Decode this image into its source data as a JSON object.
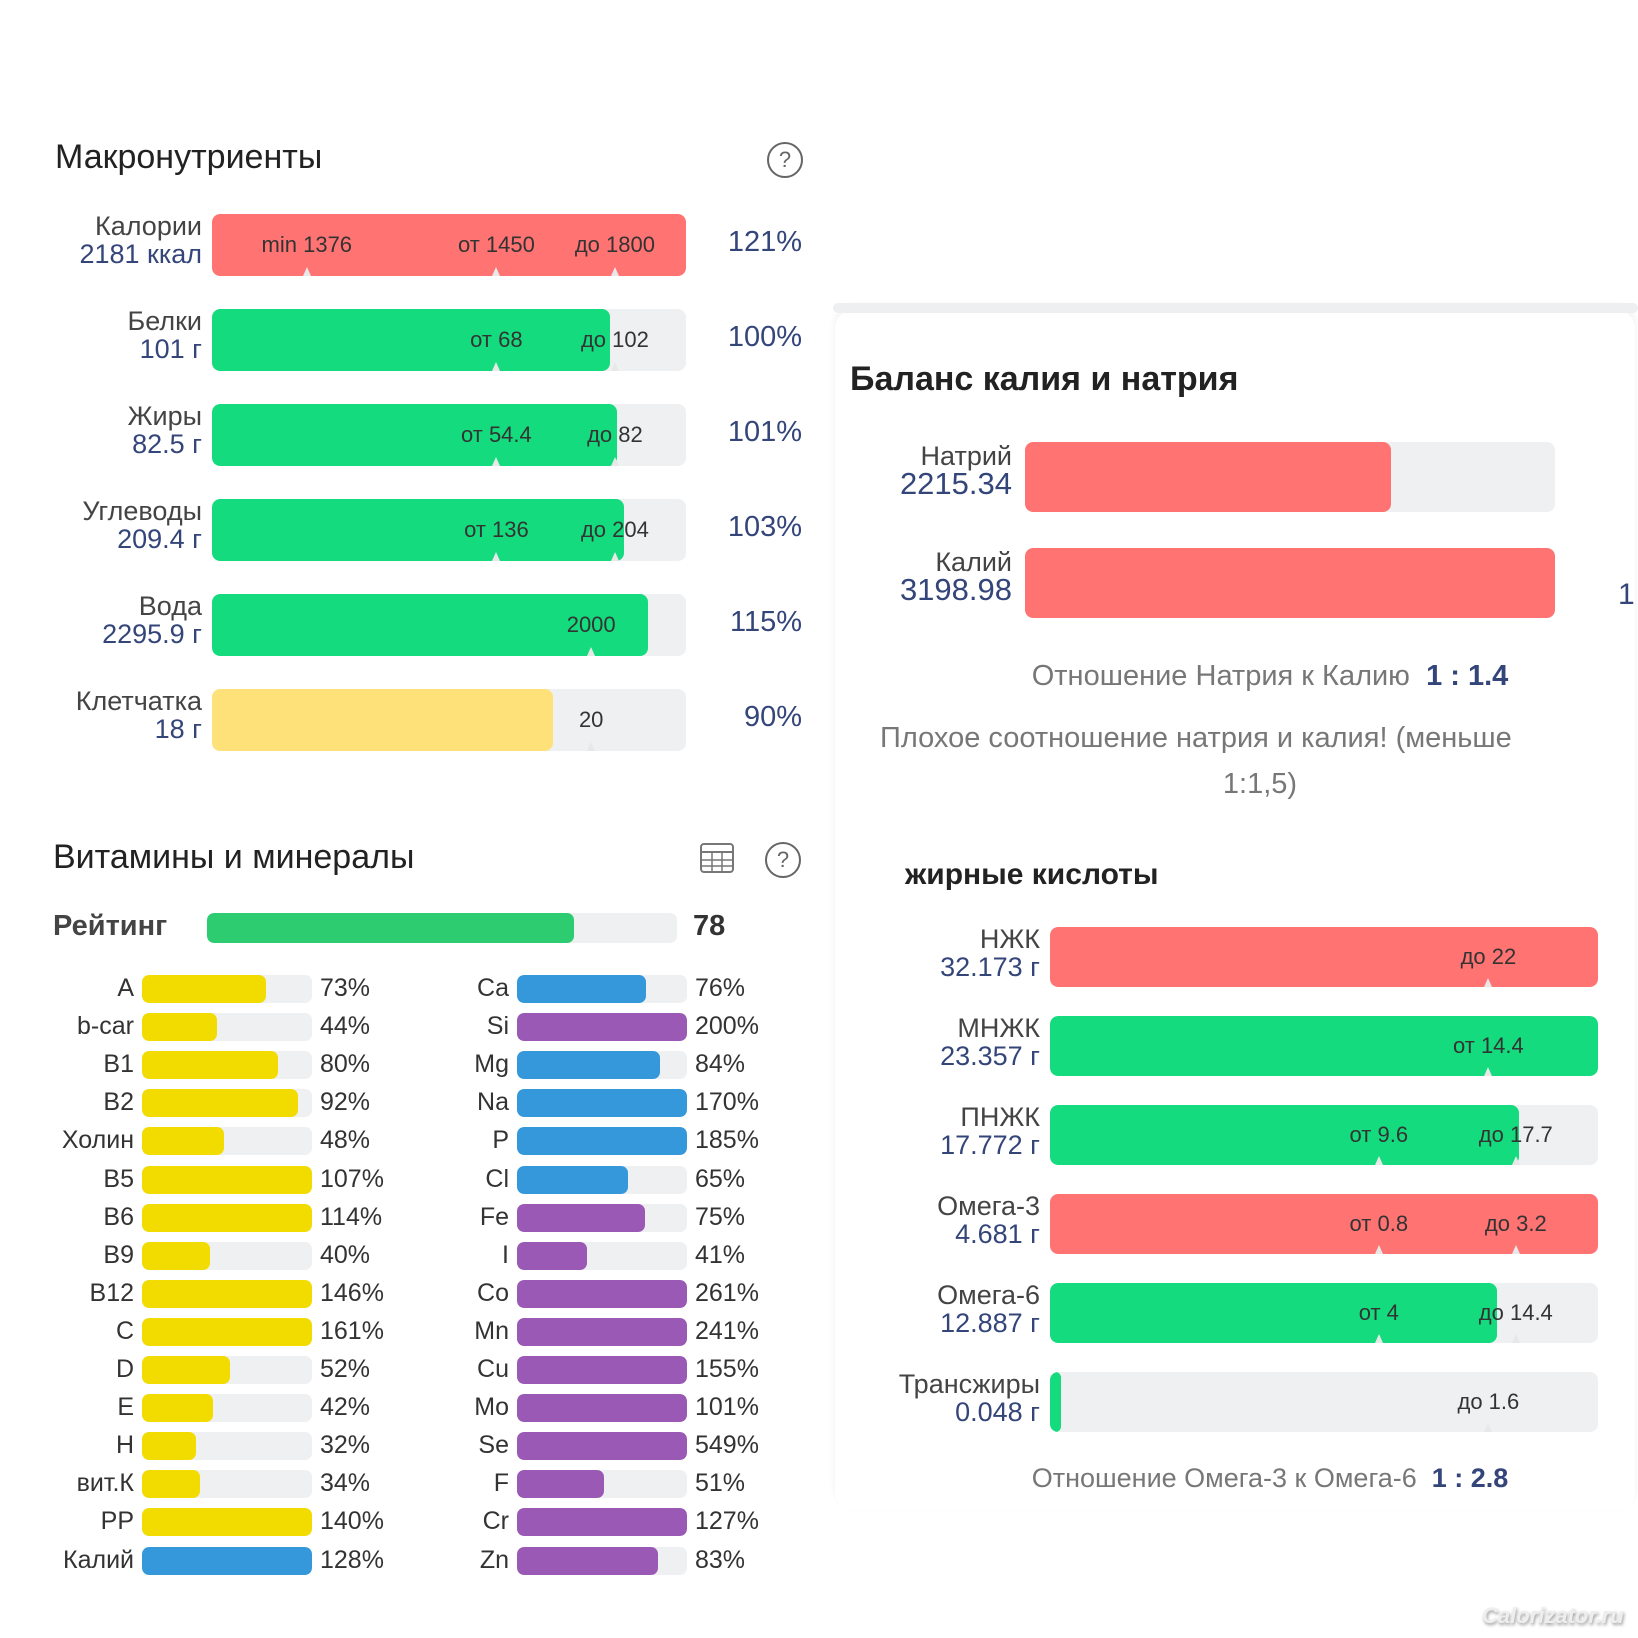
{
  "colors": {
    "red": "#ff7373",
    "green": "#14db7d",
    "yellow": "#ffe17a",
    "vit_yellow": "#f2dc00",
    "mineral_blue": "#3498db",
    "mineral_purple": "#9b59b6",
    "rating_green": "#2ecc71",
    "value_blue": "#34457a"
  },
  "macro": {
    "title": "Макронутриенты",
    "help_icon": "question-circle-icon",
    "rows": [
      {
        "name": "Калории",
        "value": "2181 ккал",
        "pct": "121%",
        "fill": 1.0,
        "color": "red",
        "marks": [
          {
            "text": "min 1376",
            "pos": 0.2
          },
          {
            "text": "от 1450",
            "pos": 0.6
          },
          {
            "text": "до 1800",
            "pos": 0.85
          }
        ]
      },
      {
        "name": "Белки",
        "value": "101 г",
        "pct": "100%",
        "fill": 0.84,
        "color": "green",
        "marks": [
          {
            "text": "от 68",
            "pos": 0.6
          },
          {
            "text": "до 102",
            "pos": 0.85
          }
        ]
      },
      {
        "name": "Жиры",
        "value": "82.5 г",
        "pct": "101%",
        "fill": 0.855,
        "color": "green",
        "marks": [
          {
            "text": "от 54.4",
            "pos": 0.6
          },
          {
            "text": "до 82",
            "pos": 0.85
          }
        ]
      },
      {
        "name": "Углеводы",
        "value": "209.4 г",
        "pct": "103%",
        "fill": 0.87,
        "color": "green",
        "marks": [
          {
            "text": "от 136",
            "pos": 0.6
          },
          {
            "text": "до 204",
            "pos": 0.85
          }
        ]
      },
      {
        "name": "Вода",
        "value": "2295.9 г",
        "pct": "115%",
        "fill": 0.92,
        "color": "green",
        "marks": [
          {
            "text": "2000",
            "pos": 0.8
          }
        ]
      },
      {
        "name": "Клетчатка",
        "value": "18 г",
        "pct": "90%",
        "fill": 0.72,
        "color": "yellow",
        "marks": [
          {
            "text": "20",
            "pos": 0.8
          }
        ]
      }
    ]
  },
  "vitamins": {
    "title": "Витамины и минералы",
    "table_icon": "table-icon",
    "help_icon": "question-circle-icon",
    "rating_label": "Рейтинг",
    "rating_value": "78",
    "rating_fill": 0.78,
    "left": [
      {
        "name": "A",
        "pct": "73%",
        "fill": 0.73,
        "color": "vit_yellow"
      },
      {
        "name": "b-car",
        "pct": "44%",
        "fill": 0.44,
        "color": "vit_yellow"
      },
      {
        "name": "B1",
        "pct": "80%",
        "fill": 0.8,
        "color": "vit_yellow"
      },
      {
        "name": "B2",
        "pct": "92%",
        "fill": 0.92,
        "color": "vit_yellow"
      },
      {
        "name": "Холин",
        "pct": "48%",
        "fill": 0.48,
        "color": "vit_yellow"
      },
      {
        "name": "B5",
        "pct": "107%",
        "fill": 1.0,
        "color": "vit_yellow"
      },
      {
        "name": "B6",
        "pct": "114%",
        "fill": 1.0,
        "color": "vit_yellow"
      },
      {
        "name": "B9",
        "pct": "40%",
        "fill": 0.4,
        "color": "vit_yellow"
      },
      {
        "name": "B12",
        "pct": "146%",
        "fill": 1.0,
        "color": "vit_yellow"
      },
      {
        "name": "C",
        "pct": "161%",
        "fill": 1.0,
        "color": "vit_yellow"
      },
      {
        "name": "D",
        "pct": "52%",
        "fill": 0.52,
        "color": "vit_yellow"
      },
      {
        "name": "E",
        "pct": "42%",
        "fill": 0.42,
        "color": "vit_yellow"
      },
      {
        "name": "H",
        "pct": "32%",
        "fill": 0.32,
        "color": "vit_yellow"
      },
      {
        "name": "вит.К",
        "pct": "34%",
        "fill": 0.34,
        "color": "vit_yellow"
      },
      {
        "name": "PP",
        "pct": "140%",
        "fill": 1.0,
        "color": "vit_yellow"
      },
      {
        "name": "Калий",
        "pct": "128%",
        "fill": 1.0,
        "color": "mineral_blue"
      }
    ],
    "right": [
      {
        "name": "Ca",
        "pct": "76%",
        "fill": 0.76,
        "color": "mineral_blue"
      },
      {
        "name": "Si",
        "pct": "200%",
        "fill": 1.0,
        "color": "mineral_purple"
      },
      {
        "name": "Mg",
        "pct": "84%",
        "fill": 0.84,
        "color": "mineral_blue"
      },
      {
        "name": "Na",
        "pct": "170%",
        "fill": 1.0,
        "color": "mineral_blue"
      },
      {
        "name": "P",
        "pct": "185%",
        "fill": 1.0,
        "color": "mineral_blue"
      },
      {
        "name": "Cl",
        "pct": "65%",
        "fill": 0.65,
        "color": "mineral_blue"
      },
      {
        "name": "Fe",
        "pct": "75%",
        "fill": 0.75,
        "color": "mineral_purple"
      },
      {
        "name": "I",
        "pct": "41%",
        "fill": 0.41,
        "color": "mineral_purple"
      },
      {
        "name": "Co",
        "pct": "261%",
        "fill": 1.0,
        "color": "mineral_purple"
      },
      {
        "name": "Mn",
        "pct": "241%",
        "fill": 1.0,
        "color": "mineral_purple"
      },
      {
        "name": "Cu",
        "pct": "155%",
        "fill": 1.0,
        "color": "mineral_purple"
      },
      {
        "name": "Mo",
        "pct": "101%",
        "fill": 1.0,
        "color": "mineral_purple"
      },
      {
        "name": "Se",
        "pct": "549%",
        "fill": 1.0,
        "color": "mineral_purple"
      },
      {
        "name": "F",
        "pct": "51%",
        "fill": 0.51,
        "color": "mineral_purple"
      },
      {
        "name": "Cr",
        "pct": "127%",
        "fill": 1.0,
        "color": "mineral_purple"
      },
      {
        "name": "Zn",
        "pct": "83%",
        "fill": 0.83,
        "color": "mineral_purple"
      }
    ]
  },
  "balance": {
    "title": "Баланс калия и натрия",
    "rows": [
      {
        "name": "Натрий",
        "value": "2215.34",
        "fill": 0.69,
        "color": "red"
      },
      {
        "name": "Калий",
        "value": "3198.98",
        "fill": 1.0,
        "color": "red"
      }
    ],
    "ratio_label": "Отношение Натрия к Калию",
    "ratio_value": "1 : 1.4",
    "warning_line1": "Плохое соотношение натрия и калия! (меньше",
    "warning_line2": "1:1,5)",
    "cut_off_char": "1"
  },
  "fatty": {
    "title": "жирные кислоты",
    "rows": [
      {
        "name": "НЖК",
        "value": "32.173 г",
        "fill": 1.0,
        "color": "red",
        "marks": [
          {
            "text": "до 22",
            "pos": 0.8
          }
        ]
      },
      {
        "name": "МНЖК",
        "value": "23.357 г",
        "fill": 1.0,
        "color": "green",
        "marks": [
          {
            "text": "от 14.4",
            "pos": 0.8
          }
        ]
      },
      {
        "name": "ПНЖК",
        "value": "17.772 г",
        "fill": 0.855,
        "color": "green",
        "marks": [
          {
            "text": "от 9.6",
            "pos": 0.6
          },
          {
            "text": "до 17.7",
            "pos": 0.85
          }
        ]
      },
      {
        "name": "Омега-3",
        "value": "4.681 г",
        "fill": 1.0,
        "color": "red",
        "marks": [
          {
            "text": "от 0.8",
            "pos": 0.6
          },
          {
            "text": "до 3.2",
            "pos": 0.85
          }
        ]
      },
      {
        "name": "Омега-6",
        "value": "12.887 г",
        "fill": 0.815,
        "color": "green",
        "marks": [
          {
            "text": "от 4",
            "pos": 0.6
          },
          {
            "text": "до 14.4",
            "pos": 0.85
          }
        ]
      },
      {
        "name": "Трансжиры",
        "value": "0.048 г",
        "fill": 0.02,
        "color": "green",
        "marks": [
          {
            "text": "до 1.6",
            "pos": 0.8
          }
        ]
      }
    ],
    "ratio_label": "Отношение Омега-3 к Омега-6",
    "ratio_value": "1 : 2.8"
  },
  "watermark": "Calorizator.ru"
}
